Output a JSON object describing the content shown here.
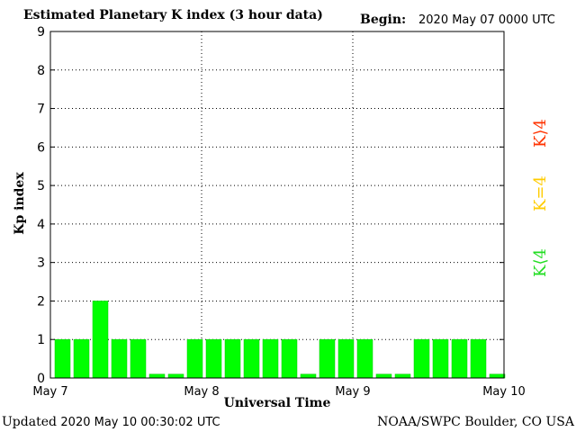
{
  "header": {
    "title": "Estimated Planetary K index (3 hour data)",
    "begin_label": "Begin:",
    "begin_value": "2020 May 07 0000 UTC"
  },
  "footer": {
    "updated_label": "Updated",
    "updated_value": "2020 May 10 00:30:02 UTC",
    "credit": "NOAA/SWPC Boulder, CO USA"
  },
  "legend": {
    "low": "K⟨4",
    "eq": "K=4",
    "high": "K⟩4"
  },
  "colors": {
    "bar": "#00ff00",
    "bar_border": "#00cc00",
    "k_low": "#22dd22",
    "k_eq": "#ffcc00",
    "k_high": "#ff3300",
    "grid": "#000000"
  },
  "chart_data": {
    "type": "bar",
    "title": "Estimated Planetary K index (3 hour data)",
    "xlabel": "Universal Time",
    "ylabel": "Kp index",
    "ylim": [
      0,
      9
    ],
    "yticks": [
      "0",
      "1",
      "2",
      "3",
      "4",
      "5",
      "6",
      "7",
      "8",
      "9"
    ],
    "xticks": [
      "May 7",
      "May 8",
      "May 9",
      "May 10"
    ],
    "grid": true,
    "bar_interval": "3 hour",
    "values": [
      1,
      1,
      2,
      1,
      1,
      0.1,
      0.1,
      1,
      1,
      1,
      1,
      1,
      1,
      0.1,
      1,
      1,
      1,
      0.1,
      0.1,
      1,
      1,
      1,
      1,
      0.1
    ]
  }
}
